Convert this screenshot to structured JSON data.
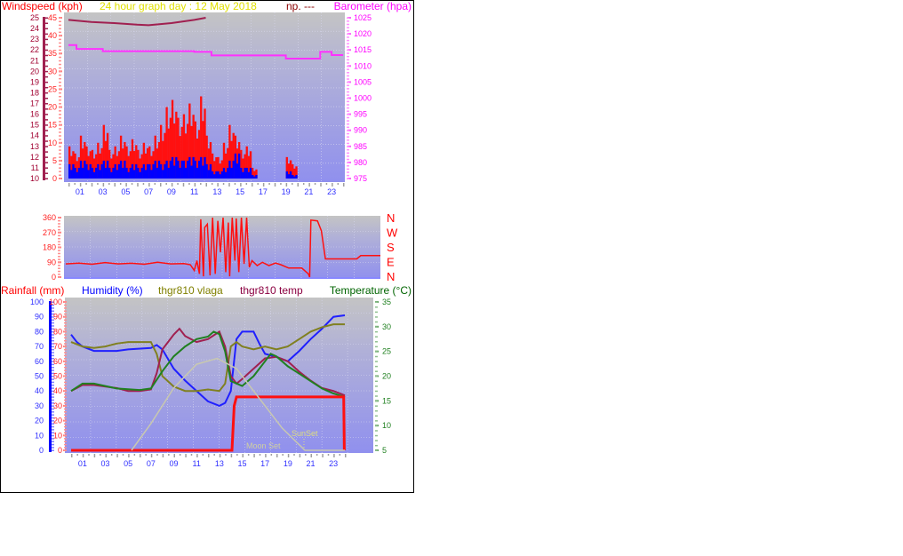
{
  "chart_data": [
    {
      "type": "bar",
      "title": "24 hour graph day : 12 May 2018",
      "extra_label": "np. ---",
      "ylabel_left": "Windspeed (kph)",
      "ylabel_right": "Barometer (hpa)",
      "x_ticks": [
        "01",
        "03",
        "05",
        "07",
        "09",
        "11",
        "13",
        "15",
        "17",
        "19",
        "21",
        "23"
      ],
      "y_ticks_left_outer": [
        "10",
        "11",
        "12",
        "13",
        "14",
        "15",
        "16",
        "17",
        "18",
        "19",
        "20",
        "21",
        "22",
        "23",
        "24",
        "25"
      ],
      "y_ticks_left": [
        "0",
        "5",
        "10",
        "15",
        "20",
        "25",
        "30",
        "35",
        "40",
        "45"
      ],
      "y_ticks_right": [
        "975",
        "980",
        "985",
        "990",
        "995",
        "1000",
        "1005",
        "1010",
        "1015",
        "1020",
        "1025"
      ],
      "ylim_left_outer": [
        10,
        25
      ],
      "ylim_left": [
        0,
        45
      ],
      "ylim_right": [
        975,
        1025
      ],
      "xlim": [
        0,
        24
      ],
      "grid": true,
      "colors": {
        "gust": "#ff1010",
        "average": "#0000ff",
        "barometer": "#ff30ff",
        "outer_line": "#a02050",
        "title": "#ffff00",
        "extra": "#8b0000"
      },
      "hours": [
        0,
        0.5,
        1,
        1.5,
        2,
        2.5,
        3,
        3.5,
        4,
        4.5,
        5,
        5.5,
        6,
        6.5,
        7,
        7.5,
        8,
        8.5,
        9,
        9.5,
        10,
        10.5,
        11,
        11.5,
        12,
        12.5,
        13,
        13.5,
        14,
        14.5,
        15,
        15.5,
        16,
        16.5,
        17,
        17.5,
        18,
        18.5,
        19,
        19.5,
        20,
        20.5,
        21,
        21.5,
        22,
        22.5,
        23,
        23.5
      ],
      "series": [
        {
          "key": "gust",
          "values": [
            9,
            7,
            12,
            9,
            8,
            10,
            15,
            8,
            9,
            12,
            9,
            11,
            8,
            10,
            9,
            12,
            15,
            20,
            22,
            17,
            18,
            21,
            16,
            23,
            12,
            7,
            6,
            10,
            15,
            12,
            8,
            9,
            3,
            0,
            0,
            0,
            0,
            0,
            6,
            4,
            0,
            0,
            0,
            0,
            0,
            0,
            0,
            0
          ]
        },
        {
          "key": "average",
          "values": [
            4,
            3,
            5,
            4,
            3,
            4,
            5,
            3,
            4,
            5,
            3,
            4,
            3,
            4,
            4,
            5,
            4,
            5,
            6,
            5,
            5,
            6,
            5,
            6,
            4,
            2,
            2,
            3,
            5,
            7,
            3,
            3,
            1,
            0,
            0,
            0,
            0,
            0,
            2,
            1,
            0,
            0,
            0,
            0,
            0,
            0,
            0,
            0
          ]
        },
        {
          "key": "barometer",
          "points": [
            [
              0,
              1016.5
            ],
            [
              0.7,
              1016.5
            ],
            [
              0.7,
              1015.3
            ],
            [
              3,
              1015.3
            ],
            [
              3,
              1014.6
            ],
            [
              11,
              1014.6
            ],
            [
              11,
              1014.4
            ],
            [
              12.5,
              1014.4
            ],
            [
              12.5,
              1013.3
            ],
            [
              19,
              1013.3
            ],
            [
              19,
              1012.3
            ],
            [
              22,
              1012.3
            ],
            [
              22,
              1014.4
            ],
            [
              23,
              1014.4
            ],
            [
              23,
              1013.4
            ],
            [
              24,
              1013.4
            ]
          ]
        },
        {
          "key": "outer_line",
          "points": [
            [
              0,
              24.8
            ],
            [
              2,
              24.6
            ],
            [
              4,
              24.5
            ],
            [
              6,
              24.35
            ],
            [
              7,
              24.3
            ],
            [
              9,
              24.5
            ],
            [
              11,
              24.8
            ],
            [
              12,
              25
            ]
          ]
        }
      ]
    },
    {
      "type": "line",
      "y_ticks": [
        "0",
        "90",
        "180",
        "270",
        "360"
      ],
      "ylim": [
        0,
        360
      ],
      "xlim": [
        0,
        24
      ],
      "compass_labels": [
        "N",
        "W",
        "S",
        "E",
        "N"
      ],
      "colors": {
        "direction": "#ff1010"
      },
      "series": [
        {
          "key": "direction",
          "points": [
            [
              0,
              80
            ],
            [
              1,
              85
            ],
            [
              2,
              78
            ],
            [
              3,
              88
            ],
            [
              4,
              80
            ],
            [
              5,
              84
            ],
            [
              6,
              78
            ],
            [
              7,
              90
            ],
            [
              8,
              80
            ],
            [
              9,
              82
            ],
            [
              9.5,
              75
            ],
            [
              9.8,
              40
            ],
            [
              10,
              100
            ],
            [
              10.2,
              20
            ],
            [
              10.3,
              350
            ],
            [
              10.5,
              5
            ],
            [
              10.6,
              300
            ],
            [
              10.8,
              320
            ],
            [
              11,
              10
            ],
            [
              11.2,
              360
            ],
            [
              11.4,
              20
            ],
            [
              11.6,
              340
            ],
            [
              11.8,
              150
            ],
            [
              12,
              360
            ],
            [
              12.2,
              30
            ],
            [
              12.4,
              330
            ],
            [
              12.5,
              5
            ],
            [
              12.7,
              360
            ],
            [
              12.9,
              100
            ],
            [
              13,
              355
            ],
            [
              13.2,
              30
            ],
            [
              13.4,
              360
            ],
            [
              13.6,
              80
            ],
            [
              13.8,
              360
            ],
            [
              14,
              60
            ],
            [
              14.2,
              100
            ],
            [
              14.6,
              70
            ],
            [
              15,
              90
            ],
            [
              15.5,
              70
            ],
            [
              16,
              85
            ],
            [
              16.4,
              75
            ],
            [
              17,
              55
            ],
            [
              18,
              55
            ],
            [
              18.5,
              20
            ],
            [
              18.6,
              0
            ],
            [
              18.7,
              345
            ],
            [
              19.2,
              340
            ],
            [
              19.5,
              280
            ],
            [
              19.8,
              110
            ],
            [
              22.2,
              110
            ],
            [
              22.5,
              130
            ],
            [
              24,
              130
            ]
          ]
        }
      ]
    },
    {
      "type": "line",
      "ylabel_left_outer": "Rainfall (mm)",
      "ylabel_left": "Humidity (%)",
      "series_labels": [
        "thgr810 vlaga",
        "thgr810 temp"
      ],
      "ylabel_right": "Temperature (°C)",
      "x_ticks": [
        "01",
        "03",
        "05",
        "07",
        "09",
        "11",
        "13",
        "15",
        "17",
        "19",
        "21",
        "23"
      ],
      "y_ticks_left": [
        "0",
        "10",
        "20",
        "30",
        "40",
        "50",
        "60",
        "70",
        "80",
        "90",
        "100"
      ],
      "y_ticks_right": [
        "5",
        "10",
        "15",
        "20",
        "25",
        "30",
        "35"
      ],
      "ylim_left": [
        0,
        100
      ],
      "ylim_right": [
        5,
        35
      ],
      "xlim": [
        0,
        24
      ],
      "grid": true,
      "annotations": [
        "SunSet",
        "Moon Set"
      ],
      "colors": {
        "humidity": "#2020ff",
        "vlaga": "#808020",
        "thgr_temp": "#a02050",
        "temperature": "#208020",
        "rainfall": "#ff1010",
        "sun": "#c8c8b0",
        "humidity_title": "#0000ff",
        "rain_title": "#ff0000",
        "temp_title": "#006400"
      },
      "series": [
        {
          "key": "humidity",
          "axis": "left",
          "points": [
            [
              0,
              78
            ],
            [
              0.5,
              73
            ],
            [
              1,
              70
            ],
            [
              2,
              67
            ],
            [
              4,
              67
            ],
            [
              5,
              68
            ],
            [
              7,
              69
            ],
            [
              7.5,
              71
            ],
            [
              8,
              68
            ],
            [
              9,
              55
            ],
            [
              10,
              47
            ],
            [
              11,
              40
            ],
            [
              12,
              33
            ],
            [
              13,
              30
            ],
            [
              13.5,
              32
            ],
            [
              14,
              40
            ],
            [
              14.5,
              75
            ],
            [
              15,
              80
            ],
            [
              16,
              80
            ],
            [
              16.5,
              72
            ],
            [
              17,
              65
            ],
            [
              18,
              63
            ],
            [
              19,
              60
            ],
            [
              20,
              67
            ],
            [
              21,
              75
            ],
            [
              22,
              82
            ],
            [
              23,
              90
            ],
            [
              24,
              91
            ]
          ]
        },
        {
          "key": "vlaga",
          "axis": "left",
          "points": [
            [
              0,
              73
            ],
            [
              1,
              70
            ],
            [
              2,
              69
            ],
            [
              3,
              70
            ],
            [
              4,
              72
            ],
            [
              5,
              73
            ],
            [
              7,
              73
            ],
            [
              7.5,
              65
            ],
            [
              8,
              50
            ],
            [
              9,
              43
            ],
            [
              10,
              40
            ],
            [
              11,
              40
            ],
            [
              12,
              41
            ],
            [
              13,
              40
            ],
            [
              13.5,
              45
            ],
            [
              14,
              70
            ],
            [
              14.5,
              73
            ],
            [
              15,
              70
            ],
            [
              16,
              68
            ],
            [
              17,
              70
            ],
            [
              18,
              68
            ],
            [
              19,
              70
            ],
            [
              20,
              75
            ],
            [
              21,
              80
            ],
            [
              22,
              83
            ],
            [
              23,
              85
            ],
            [
              24,
              85
            ]
          ]
        },
        {
          "key": "thgr_temp",
          "axis": "right",
          "points": [
            [
              0,
              17
            ],
            [
              1,
              18.2
            ],
            [
              2,
              18.2
            ],
            [
              4,
              17.6
            ],
            [
              5,
              17
            ],
            [
              6,
              17
            ],
            [
              7,
              17.3
            ],
            [
              7.5,
              20.6
            ],
            [
              8,
              25.4
            ],
            [
              9,
              28.4
            ],
            [
              9.5,
              29.6
            ],
            [
              10,
              28.1
            ],
            [
              11,
              26.9
            ],
            [
              12,
              27.5
            ],
            [
              13,
              29
            ],
            [
              13.5,
              26
            ],
            [
              14,
              20
            ],
            [
              14.5,
              18.5
            ],
            [
              15,
              19.4
            ],
            [
              16,
              21.5
            ],
            [
              17,
              23.6
            ],
            [
              18,
              23.9
            ],
            [
              19,
              23
            ],
            [
              20,
              20.9
            ],
            [
              21,
              19.1
            ],
            [
              22,
              17.6
            ],
            [
              23,
              17
            ],
            [
              24,
              16.1
            ]
          ]
        },
        {
          "key": "temperature",
          "axis": "right",
          "points": [
            [
              0,
              17
            ],
            [
              1,
              18.5
            ],
            [
              2,
              18.5
            ],
            [
              4,
              17.5
            ],
            [
              6,
              17.2
            ],
            [
              7,
              17.5
            ],
            [
              8,
              21
            ],
            [
              9,
              24
            ],
            [
              10,
              26
            ],
            [
              11,
              27.5
            ],
            [
              12,
              28
            ],
            [
              12.5,
              29
            ],
            [
              13,
              28.5
            ],
            [
              13.5,
              25
            ],
            [
              14,
              19
            ],
            [
              15,
              18
            ],
            [
              16,
              20
            ],
            [
              17,
              23
            ],
            [
              17.5,
              24.5
            ],
            [
              18,
              24
            ],
            [
              19,
              22
            ],
            [
              20,
              20.5
            ],
            [
              21,
              19
            ],
            [
              22,
              17.5
            ],
            [
              23,
              16.5
            ],
            [
              24,
              15.8
            ]
          ]
        },
        {
          "key": "rainfall",
          "axis": "left",
          "points": [
            [
              0,
              0
            ],
            [
              14.1,
              0
            ],
            [
              14.3,
              30
            ],
            [
              14.5,
              36
            ],
            [
              23.9,
              36
            ],
            [
              23.95,
              0
            ]
          ]
        },
        {
          "key": "sun",
          "axis": "left",
          "points": [
            [
              5.3,
              0
            ],
            [
              7,
              18
            ],
            [
              9,
              42
            ],
            [
              11,
              58
            ],
            [
              12.8,
              62
            ],
            [
              14.5,
              55
            ],
            [
              16.5,
              35
            ],
            [
              18.5,
              15
            ],
            [
              20.5,
              0
            ],
            [
              24,
              0
            ]
          ]
        }
      ]
    }
  ]
}
